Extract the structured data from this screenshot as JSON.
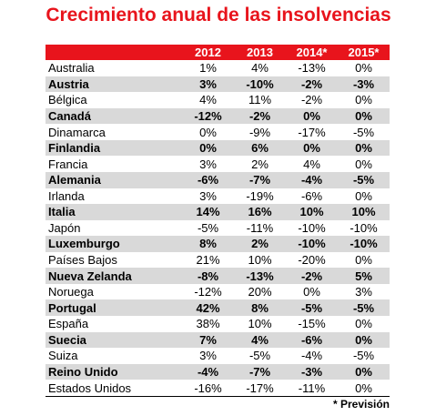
{
  "title": "Crecimiento anual de las insolvencias",
  "table": {
    "columns": [
      "2012",
      "2013",
      "2014*",
      "2015*"
    ],
    "rows": [
      {
        "country": "Australia",
        "values": [
          "1%",
          "4%",
          "-13%",
          "0%"
        ]
      },
      {
        "country": "Austria",
        "values": [
          "3%",
          "-10%",
          "-2%",
          "-3%"
        ]
      },
      {
        "country": "Bélgica",
        "values": [
          "4%",
          "11%",
          "-2%",
          "0%"
        ]
      },
      {
        "country": "Canadá",
        "values": [
          "-12%",
          "-2%",
          "0%",
          "0%"
        ]
      },
      {
        "country": "Dinamarca",
        "values": [
          "0%",
          "-9%",
          "-17%",
          "-5%"
        ]
      },
      {
        "country": "Finlandia",
        "values": [
          "0%",
          "6%",
          "0%",
          "0%"
        ]
      },
      {
        "country": "Francia",
        "values": [
          "3%",
          "2%",
          "4%",
          "0%"
        ]
      },
      {
        "country": "Alemania",
        "values": [
          "-6%",
          "-7%",
          "-4%",
          "-5%"
        ]
      },
      {
        "country": "Irlanda",
        "values": [
          "3%",
          "-19%",
          "-6%",
          "0%"
        ]
      },
      {
        "country": "Italia",
        "values": [
          "14%",
          "16%",
          "10%",
          "10%"
        ]
      },
      {
        "country": "Japón",
        "values": [
          "-5%",
          "-11%",
          "-10%",
          "-10%"
        ]
      },
      {
        "country": "Luxemburgo",
        "values": [
          "8%",
          "2%",
          "-10%",
          "-10%"
        ]
      },
      {
        "country": "Países Bajos",
        "values": [
          "21%",
          "10%",
          "-20%",
          "0%"
        ]
      },
      {
        "country": "Nueva Zelanda",
        "values": [
          "-8%",
          "-13%",
          "-2%",
          "5%"
        ]
      },
      {
        "country": "Noruega",
        "values": [
          "-12%",
          "20%",
          "0%",
          "3%"
        ]
      },
      {
        "country": "Portugal",
        "values": [
          "42%",
          "8%",
          "-5%",
          "-5%"
        ]
      },
      {
        "country": "España",
        "values": [
          "38%",
          "10%",
          "-15%",
          "0%"
        ]
      },
      {
        "country": "Suecia",
        "values": [
          "7%",
          "4%",
          "-6%",
          "0%"
        ]
      },
      {
        "country": "Suiza",
        "values": [
          "3%",
          "-5%",
          "-4%",
          "-5%"
        ]
      },
      {
        "country": "Reino Unido",
        "values": [
          "-4%",
          "-7%",
          "-3%",
          "0%"
        ]
      },
      {
        "country": "Estados Unidos",
        "values": [
          "-16%",
          "-17%",
          "-11%",
          "0%"
        ]
      }
    ]
  },
  "footnote": "* Previsión"
}
